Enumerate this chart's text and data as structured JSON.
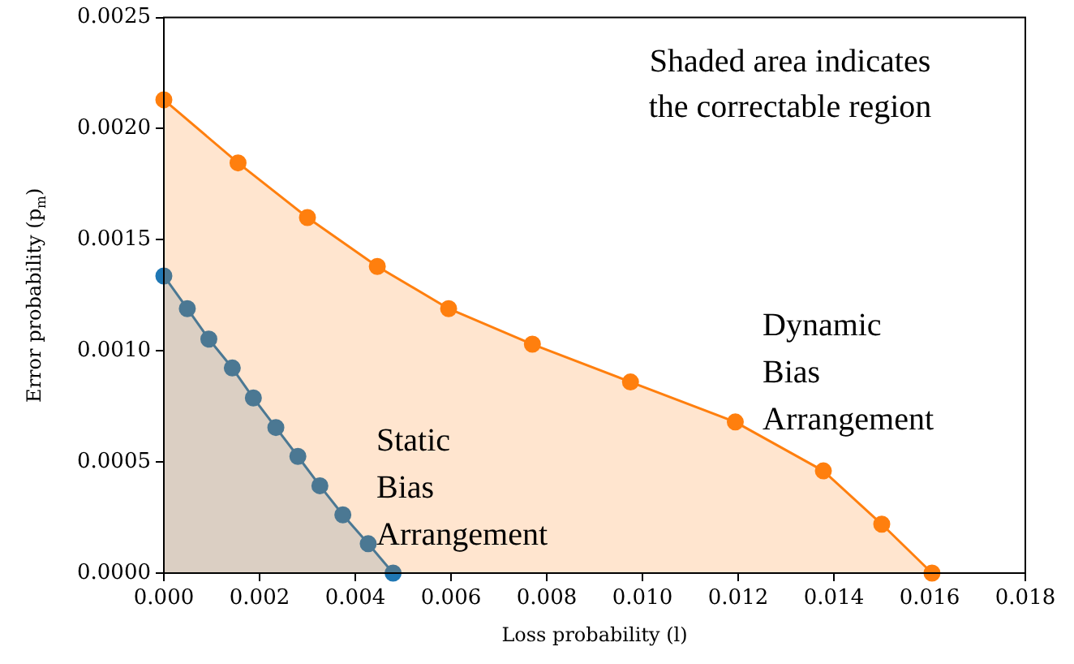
{
  "chart_data": {
    "type": "area",
    "xlabel": "Loss probability (l)",
    "ylabel": "Error probability (p$_{m}$)",
    "series": [
      {
        "color": "#ff7f0e",
        "x": [
          0,
          0.00155,
          0.003,
          0.00446,
          0.00595,
          0.0077,
          0.00975,
          0.01194,
          0.01378,
          0.015,
          0.01605
        ],
        "values": [
          0.00213,
          0.001846,
          0.0016,
          0.00138,
          0.00119,
          0.00103,
          0.00086,
          0.00068,
          0.00046,
          0.00022,
          0
        ]
      },
      {
        "color": "#1f77b4",
        "x": [
          0,
          0.00049,
          0.00094,
          0.00143,
          0.00187,
          0.00234,
          0.0028,
          0.00326,
          0.00374,
          0.00427,
          0.00479
        ],
        "values": [
          0.001337,
          0.00119,
          0.001053,
          0.000923,
          0.000788,
          0.000655,
          0.000525,
          0.000393,
          0.000262,
          0.000132,
          0
        ]
      }
    ],
    "xlim": [
      0,
      0.018
    ],
    "xticks": [
      {
        "value": 0,
        "label": "0.000"
      },
      {
        "value": 0.002,
        "label": "0.002"
      },
      {
        "value": 0.004,
        "label": "0.004"
      },
      {
        "value": 0.006,
        "label": "0.006"
      },
      {
        "value": 0.008,
        "label": "0.008"
      },
      {
        "value": 0.01,
        "label": "0.010"
      },
      {
        "value": 0.012,
        "label": "0.012"
      },
      {
        "value": 0.014,
        "label": "0.014"
      },
      {
        "value": 0.016,
        "label": "0.016"
      },
      {
        "value": 0.018,
        "label": "0.018"
      }
    ],
    "ylim": [
      0,
      0.0025
    ],
    "yticks": [
      {
        "value": 0,
        "label": "0.0000"
      },
      {
        "value": 0.0005,
        "label": "0.0005"
      },
      {
        "value": 0.001,
        "label": "0.0010"
      },
      {
        "value": 0.0015,
        "label": "0.0015"
      },
      {
        "value": 0.002,
        "label": "0.0020"
      },
      {
        "value": 0.0025,
        "label": "0.0025"
      }
    ],
    "annotations": [
      "Shaded area indicates\nthe correctable region",
      "Static\nBias\nArrangement",
      "Dynamic\nBias\nArrangement"
    ],
    "marker": "circle",
    "grid": false,
    "legend": false
  }
}
